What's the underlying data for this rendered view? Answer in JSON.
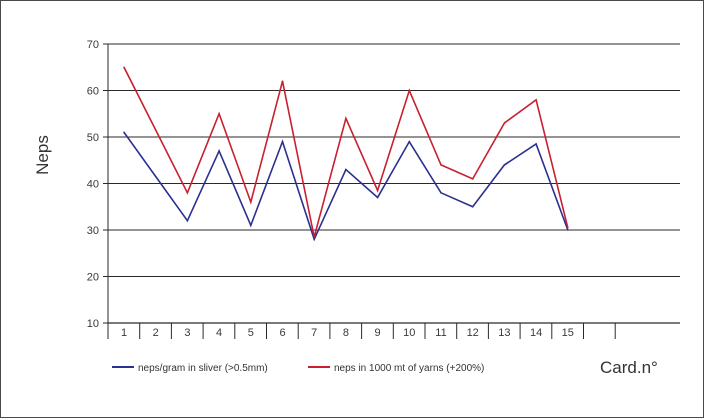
{
  "chart_data": {
    "type": "line",
    "ylabel": "Neps",
    "xlabel": "Card.n°",
    "x": [
      1,
      2,
      3,
      4,
      5,
      6,
      7,
      8,
      9,
      10,
      11,
      12,
      13,
      14,
      15
    ],
    "x_ticks": [
      "1",
      "2",
      "3",
      "4",
      "5",
      "6",
      "7",
      "8",
      "9",
      "10",
      "11",
      "12",
      "13",
      "14",
      "15"
    ],
    "ylim": [
      10,
      70
    ],
    "y_ticks": [
      10,
      20,
      30,
      40,
      50,
      60,
      70
    ],
    "grid": "horizontal",
    "legend_position": "bottom",
    "series": [
      {
        "name": "neps/gram in sliver (>0.5mm)",
        "color": "#2b2f8f",
        "values": [
          51,
          41.5,
          32,
          47,
          31,
          49,
          28,
          43,
          37,
          49,
          38,
          35,
          44,
          48.5,
          30
        ]
      },
      {
        "name": "neps in 1000 mt of yarns (+200%)",
        "color": "#c8202f",
        "values": [
          65,
          51.5,
          38,
          55,
          36,
          62,
          28.5,
          54,
          38.5,
          60,
          44,
          41,
          53,
          58,
          30.5
        ]
      }
    ]
  }
}
